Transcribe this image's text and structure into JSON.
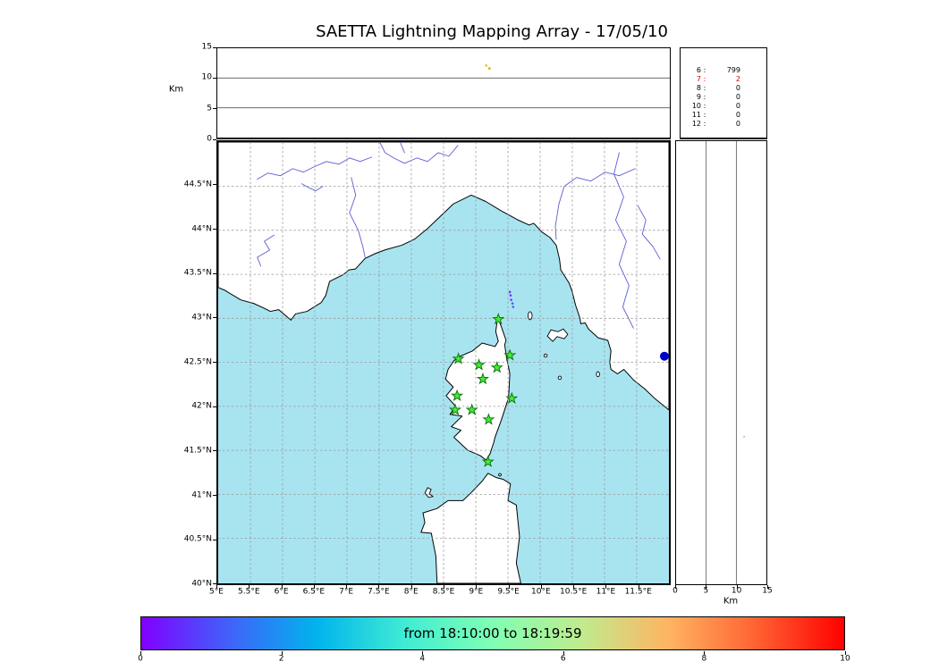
{
  "title": "SAETTA Lightning Mapping Array - 17/05/10",
  "colorbar": {
    "label": "from 18:10:00 to 18:19:59",
    "ticks": [
      "0",
      "2",
      "4",
      "6",
      "8",
      "10"
    ],
    "range": [
      0,
      10
    ],
    "gradient": [
      "#8000ff 0%",
      "#4062fa 12.5%",
      "#00b4ec 25%",
      "#40ecd4 37.5%",
      "#80ffb4 50%",
      "#bfec8e 62.5%",
      "#ffb462 75%",
      "#ff6232 87.5%",
      "#ff0000 100%"
    ]
  },
  "chart_data": [
    {
      "type": "scatter",
      "name": "altitude_vs_longitude",
      "ylabel": "Km",
      "ylim": [
        0,
        15
      ],
      "yticks": [
        0,
        5,
        10,
        15
      ],
      "xlim_deg_east": [
        5,
        12
      ],
      "grid_km": [
        5,
        10
      ],
      "points": [
        {
          "lon": 9.16,
          "alt_km": 12.1,
          "color": "#e0c81e"
        },
        {
          "lon": 9.21,
          "alt_km": 11.6,
          "color": "#f0a21c"
        }
      ]
    },
    {
      "type": "table",
      "name": "sources_per_station_count",
      "columns": [
        "num_stations",
        "num_sources"
      ],
      "rows": [
        {
          "stations": "6",
          "count": "799",
          "color": "#000000"
        },
        {
          "stations": "7",
          "count": "2",
          "color": "#e00000"
        },
        {
          "stations": "8",
          "count": "0",
          "color": "#000000"
        },
        {
          "stations": "9",
          "count": "0",
          "color": "#000000"
        },
        {
          "stations": "10",
          "count": "0",
          "color": "#000000"
        },
        {
          "stations": "11",
          "count": "0",
          "color": "#000000"
        },
        {
          "stations": "12",
          "count": "0",
          "color": "#000000"
        }
      ]
    },
    {
      "type": "scatter",
      "name": "map_panel",
      "lat_ticks": [
        "44.5°N",
        "44°N",
        "43.5°N",
        "43°N",
        "42.5°N",
        "42°N",
        "41.5°N",
        "41°N",
        "40.5°N",
        "40°N"
      ],
      "lon_ticks": [
        "5°E",
        "5.5°E",
        "6°E",
        "6.5°E",
        "7°E",
        "7.5°E",
        "8°E",
        "8.5°E",
        "9°E",
        "9.5°E",
        "10°E",
        "10.5°E",
        "11°E",
        "11.5°E"
      ],
      "lon_range": [
        5,
        12
      ],
      "lat_range": [
        40,
        45
      ],
      "sea_color": "#a8e4f0",
      "station_marker": {
        "shape": "star",
        "fill": "#44ee33",
        "edge": "#117711"
      },
      "stations": [
        {
          "lon": 9.35,
          "lat": 42.99
        },
        {
          "lon": 8.73,
          "lat": 42.54
        },
        {
          "lon": 9.05,
          "lat": 42.47
        },
        {
          "lon": 9.33,
          "lat": 42.44
        },
        {
          "lon": 9.53,
          "lat": 42.58
        },
        {
          "lon": 9.11,
          "lat": 42.31
        },
        {
          "lon": 8.71,
          "lat": 42.12
        },
        {
          "lon": 9.56,
          "lat": 42.09
        },
        {
          "lon": 8.68,
          "lat": 41.96
        },
        {
          "lon": 8.94,
          "lat": 41.96
        },
        {
          "lon": 9.2,
          "lat": 41.85
        },
        {
          "lon": 9.19,
          "lat": 41.37
        }
      ],
      "flash_points": [
        {
          "lon": 9.53,
          "lat": 43.3,
          "color": "#7a30f0"
        },
        {
          "lon": 9.54,
          "lat": 43.26,
          "color": "#6a3cf4"
        },
        {
          "lon": 9.55,
          "lat": 43.21,
          "color": "#5a48f6"
        },
        {
          "lon": 9.57,
          "lat": 43.17,
          "color": "#4a55f0"
        },
        {
          "lon": 9.58,
          "lat": 43.13,
          "color": "#3f62ea"
        }
      ],
      "offshore_marker": {
        "lon": 11.93,
        "lat": 42.57,
        "color": "#0000cc",
        "radius_px": 5
      }
    },
    {
      "type": "scatter",
      "name": "altitude_vs_latitude",
      "xlabel": "Km",
      "xlim": [
        0,
        15
      ],
      "xticks": [
        0,
        5,
        10,
        15
      ],
      "grid_km": [
        5,
        10
      ],
      "points": [
        {
          "alt_km": 11.3,
          "lat": 41.66,
          "color": "#c9c9c9"
        }
      ]
    }
  ]
}
